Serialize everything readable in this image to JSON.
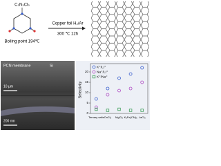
{
  "scheme": {
    "precursor": "C₃N₃Cl₃",
    "boiling_point": "Boiling point 194℃",
    "condition_top": "Copper foil H₂/Ar",
    "condition_bottom": "300 ℃ 12h"
  },
  "sem": {
    "label_membrane": "PCN membrane",
    "label_substrate": "Si",
    "scale_top": "10 μm",
    "scale_bottom": "200 nm"
  },
  "chart_data": {
    "type": "scatter",
    "y_label": "Selectivity",
    "categories": [
      "Ternary salts",
      "CaCl₂",
      "MgCl₂",
      "K₃Fe(CN)₆",
      "LaCl₃"
    ],
    "series": [
      {
        "name": "K⁺/Li⁺",
        "color": "#3a5fcd",
        "marker": "circle",
        "values": [
          7,
          12,
          17,
          19,
          22
        ]
      },
      {
        "name": "Na⁺/Li⁺",
        "color": "#b04fc4",
        "marker": "circle",
        "values": [
          3,
          9,
          11,
          12,
          15
        ]
      },
      {
        "name": "K⁺/Na⁺",
        "color": "#3f9e5a",
        "marker": "square",
        "values": [
          2,
          1.5,
          2,
          1.5,
          1.5
        ]
      }
    ],
    "ylim": [
      0,
      24
    ],
    "yticks": [
      0,
      5,
      10,
      15,
      20
    ]
  }
}
